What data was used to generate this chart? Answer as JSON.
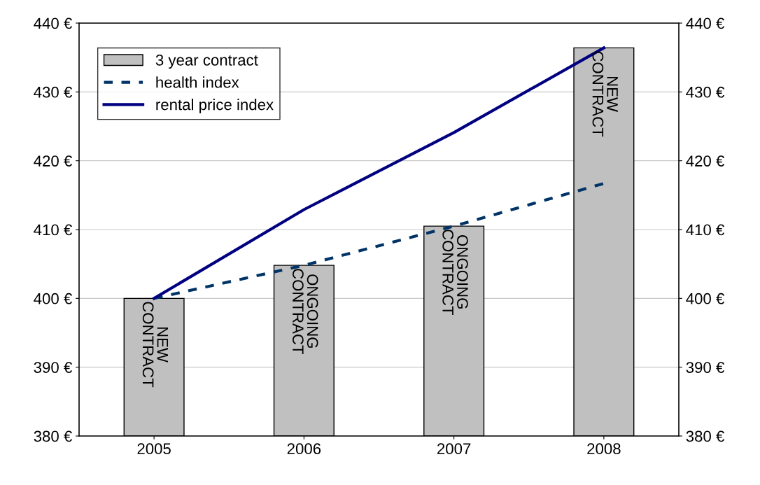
{
  "chart_data": {
    "type": "bar",
    "categories": [
      "2005",
      "2006",
      "2007",
      "2008"
    ],
    "series": [
      {
        "name": "3 year contract",
        "color": "#c0c0c0",
        "values": [
          400,
          404.8,
          410.5,
          436.4
        ]
      },
      {
        "name": "health index",
        "type": "line",
        "color": "#003366",
        "line_style": "dashed",
        "values": [
          400,
          404.8,
          410.5,
          416.7
        ]
      },
      {
        "name": "rental price index",
        "type": "line",
        "color": "#000080",
        "line_style": "solid",
        "values": [
          400,
          412.9,
          424.1,
          436.4
        ]
      }
    ],
    "ylim": [
      380,
      440
    ],
    "yticks": [
      {
        "value": 380,
        "label": "380 €"
      },
      {
        "value": 390,
        "label": "390 €"
      },
      {
        "value": 400,
        "label": "400 €"
      },
      {
        "value": 410,
        "label": "410 €"
      },
      {
        "value": 420,
        "label": "420 €"
      },
      {
        "value": 430,
        "label": "430 €"
      },
      {
        "value": 440,
        "label": "440 €"
      }
    ],
    "y2lim": [
      380,
      440
    ],
    "y2ticks": [
      {
        "value": 380,
        "label": "380 €"
      },
      {
        "value": 390,
        "label": "390 €"
      },
      {
        "value": 400,
        "label": "400 €"
      },
      {
        "value": 410,
        "label": "410 €"
      },
      {
        "value": 420,
        "label": "420 €"
      },
      {
        "value": 430,
        "label": "430 €"
      },
      {
        "value": 440,
        "label": "440 €"
      }
    ],
    "annotations": [
      {
        "text": "NEW\nCONTRACT",
        "x": "2005",
        "y": 400
      },
      {
        "text": "ONGOING\nCONTRACT",
        "x": "2006",
        "y": 404.8
      },
      {
        "text": "ONGOING\nCONTRACT",
        "x": "2007",
        "y": 410.5
      },
      {
        "text": "NEW\nCONTRACT",
        "x": "2008",
        "y": 436.4
      }
    ],
    "grid": "y",
    "legend": "top left"
  }
}
